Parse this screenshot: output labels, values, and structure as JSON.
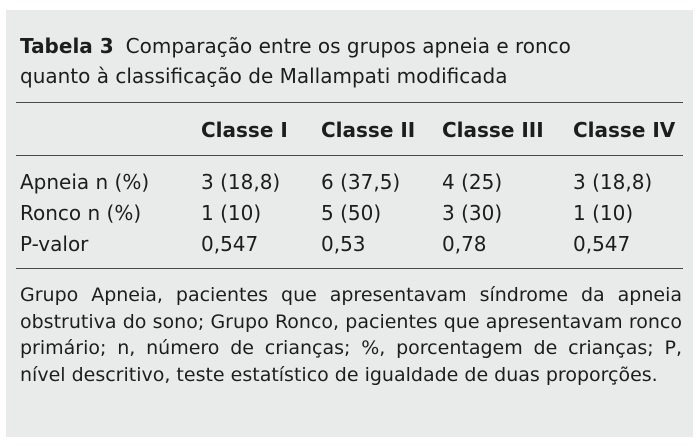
{
  "table": {
    "label": "Tabela 3",
    "caption_line1": "Comparação entre os grupos apneia e ronco",
    "caption_line2": "quanto à classificação de Mallampati modificada",
    "columns": [
      "",
      "Classe I",
      "Classe II",
      "Classe III",
      "Classe IV"
    ],
    "rows": [
      {
        "label": "Apneia n (%)",
        "values": [
          "3 (18,8)",
          "6 (37,5)",
          "4 (25)",
          "3 (18,8)"
        ]
      },
      {
        "label": "Ronco n (%)",
        "values": [
          "1 (10)",
          "5 (50)",
          "3 (30)",
          "1 (10)"
        ]
      },
      {
        "label": "P-valor",
        "values": [
          "0,547",
          "0,53",
          "0,78",
          "0,547"
        ]
      }
    ],
    "footnote": "Grupo Apneia, pacientes que apresentavam síndrome da apneia obstrutiva do sono; Grupo Ronco, pacientes que apresentavam ronco primário; n, número de crianças; %, porcentagem de crianças; P, nível descritivo, teste estatístico de igualdade de duas proporções."
  }
}
